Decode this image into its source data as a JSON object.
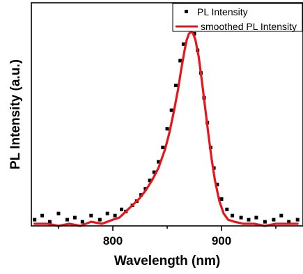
{
  "chart_data": {
    "type": "scatter",
    "title": "",
    "xlabel": "Wavelength (nm)",
    "ylabel": "PL Intensity (a.u.)",
    "xlim": [
      725,
      975
    ],
    "ylim": [
      0,
      1.08
    ],
    "xticks": [
      800,
      900
    ],
    "yticks_labeled": false,
    "grid": false,
    "legend_position": "top-right",
    "series": [
      {
        "name": "PL Intensity",
        "kind": "scatter",
        "marker": "square",
        "color": "#000000",
        "peak_center_nm": 870,
        "peak_height": 1.0,
        "points": [
          [
            728,
            0.03
          ],
          [
            735,
            0.05
          ],
          [
            742,
            0.02
          ],
          [
            750,
            0.06
          ],
          [
            758,
            0.03
          ],
          [
            765,
            0.04
          ],
          [
            772,
            0.02
          ],
          [
            780,
            0.05
          ],
          [
            788,
            0.03
          ],
          [
            795,
            0.06
          ],
          [
            802,
            0.05
          ],
          [
            808,
            0.08
          ],
          [
            812,
            0.07
          ],
          [
            818,
            0.1
          ],
          [
            822,
            0.12
          ],
          [
            826,
            0.15
          ],
          [
            830,
            0.18
          ],
          [
            834,
            0.22
          ],
          [
            838,
            0.26
          ],
          [
            842,
            0.31
          ],
          [
            846,
            0.38
          ],
          [
            850,
            0.47
          ],
          [
            854,
            0.56
          ],
          [
            858,
            0.68
          ],
          [
            862,
            0.8
          ],
          [
            865,
            0.88
          ],
          [
            868,
            0.95
          ],
          [
            870,
            1.02
          ],
          [
            872,
            0.99
          ],
          [
            875,
            0.93
          ],
          [
            878,
            0.85
          ],
          [
            881,
            0.74
          ],
          [
            884,
            0.62
          ],
          [
            887,
            0.5
          ],
          [
            890,
            0.38
          ],
          [
            893,
            0.28
          ],
          [
            896,
            0.2
          ],
          [
            900,
            0.13
          ],
          [
            905,
            0.08
          ],
          [
            910,
            0.05
          ],
          [
            918,
            0.04
          ],
          [
            925,
            0.03
          ],
          [
            932,
            0.04
          ],
          [
            940,
            0.02
          ],
          [
            948,
            0.03
          ],
          [
            955,
            0.05
          ],
          [
            962,
            0.02
          ],
          [
            970,
            0.03
          ]
        ]
      },
      {
        "name": "smoothed PL Intensity",
        "kind": "line",
        "color": "#e8141b",
        "x": [
          728,
          740,
          750,
          760,
          770,
          780,
          790,
          800,
          806,
          812,
          818,
          824,
          830,
          836,
          842,
          848,
          852,
          856,
          860,
          863,
          866,
          868,
          870,
          872,
          874,
          876,
          879,
          882,
          885,
          888,
          891,
          894,
          898,
          902,
          906,
          912,
          920,
          930,
          940,
          950,
          960,
          970
        ],
        "y": [
          0.01,
          0.01,
          0.0,
          0.01,
          0.0,
          0.02,
          0.01,
          0.03,
          0.04,
          0.07,
          0.1,
          0.13,
          0.17,
          0.22,
          0.28,
          0.37,
          0.45,
          0.55,
          0.66,
          0.76,
          0.85,
          0.9,
          0.93,
          0.94,
          0.93,
          0.9,
          0.82,
          0.7,
          0.57,
          0.44,
          0.32,
          0.22,
          0.12,
          0.06,
          0.03,
          0.02,
          0.01,
          0.01,
          0.0,
          0.01,
          0.01,
          0.01
        ]
      }
    ]
  }
}
